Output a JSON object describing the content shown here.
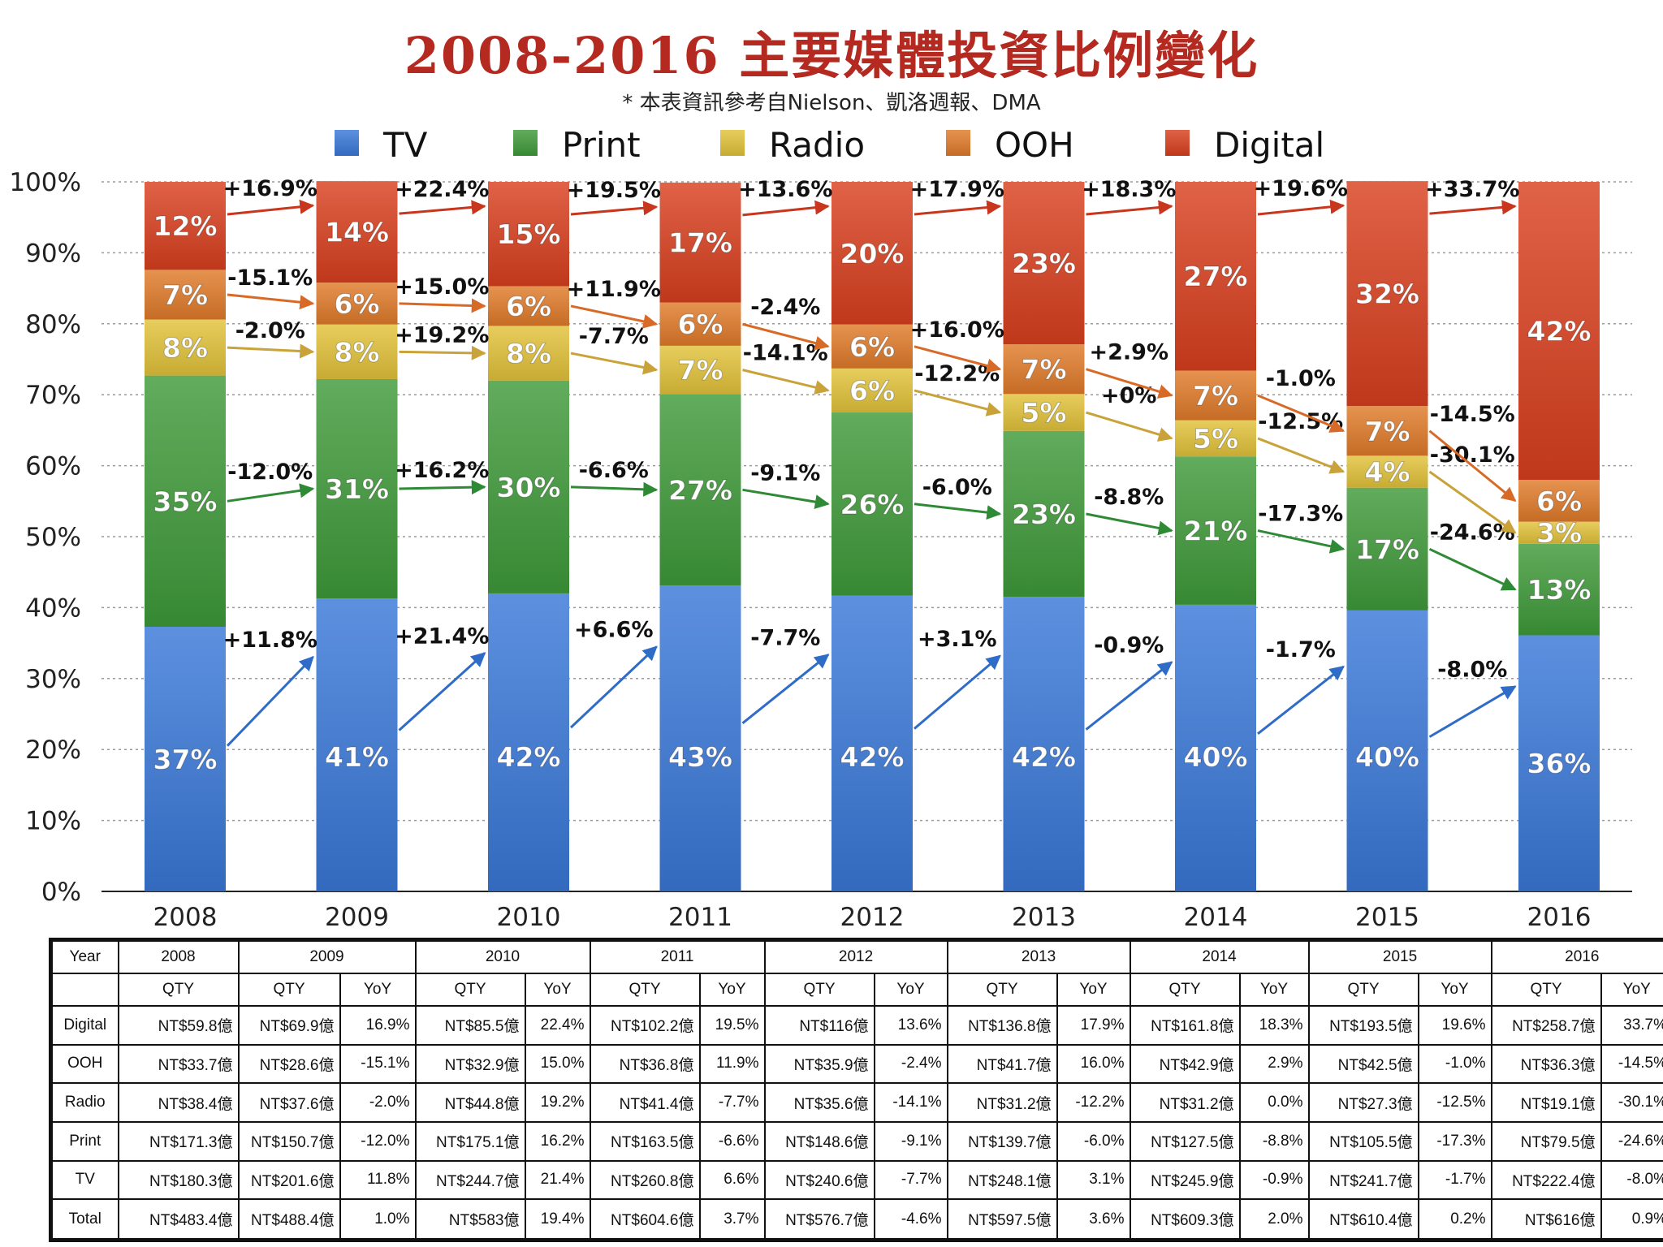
{
  "title": "2008-2016 主要媒體投資比例變化",
  "subtitle": "* 本表資訊參考自Nielson、凱洛週報、DMA",
  "chart_data": {
    "type": "bar",
    "stacked": true,
    "categories": [
      "2008",
      "2009",
      "2010",
      "2011",
      "2012",
      "2013",
      "2014",
      "2015",
      "2016"
    ],
    "ylim": [
      0,
      100
    ],
    "y_ticks": [
      "0%",
      "10%",
      "20%",
      "30%",
      "40%",
      "50%",
      "60%",
      "70%",
      "80%",
      "90%",
      "100%"
    ],
    "grid": true,
    "legend_position": "top",
    "series": [
      {
        "name": "TV",
        "color": "#3a78d8",
        "labels": [
          "37%",
          "41%",
          "42%",
          "43%",
          "42%",
          "42%",
          "40%",
          "40%",
          "36%"
        ],
        "values": [
          37.3,
          41.3,
          42.0,
          43.1,
          41.7,
          41.5,
          40.4,
          39.6,
          36.1
        ],
        "yoy": [
          "+11.8%",
          "+21.4%",
          "+6.6%",
          "-7.7%",
          "+3.1%",
          "-0.9%",
          "-1.7%",
          "-8.0%"
        ]
      },
      {
        "name": "Print",
        "color": "#3f9a3a",
        "labels": [
          "35%",
          "31%",
          "30%",
          "27%",
          "26%",
          "23%",
          "21%",
          "17%",
          "13%"
        ],
        "values": [
          35.4,
          30.9,
          30.0,
          27.0,
          25.8,
          23.4,
          20.9,
          17.3,
          12.9
        ],
        "yoy": [
          "-12.0%",
          "+16.2%",
          "-6.6%",
          "-9.1%",
          "-6.0%",
          "-8.8%",
          "-17.3%",
          "-24.6%"
        ]
      },
      {
        "name": "Radio",
        "color": "#e2c23a",
        "labels": [
          "8%",
          "8%",
          "8%",
          "7%",
          "6%",
          "5%",
          "5%",
          "4%",
          "3%"
        ],
        "values": [
          7.9,
          7.7,
          7.7,
          6.8,
          6.2,
          5.2,
          5.1,
          4.5,
          3.1
        ],
        "yoy": [
          "-2.0%",
          "+19.2%",
          "-7.7%",
          "-14.1%",
          "-12.2%",
          "+0%",
          "-12.5%",
          "-30.1%"
        ]
      },
      {
        "name": "OOH",
        "color": "#e07b2a",
        "labels": [
          "7%",
          "6%",
          "6%",
          "6%",
          "6%",
          "7%",
          "7%",
          "7%",
          "6%"
        ],
        "values": [
          7.0,
          5.9,
          5.6,
          6.1,
          6.2,
          7.0,
          7.0,
          7.0,
          5.9
        ],
        "yoy": [
          "-15.1%",
          "+15.0%",
          "+11.9%",
          "-2.4%",
          "+16.0%",
          "+2.9%",
          "-1.0%",
          "-14.5%"
        ]
      },
      {
        "name": "Digital",
        "color": "#d9401f",
        "labels": [
          "12%",
          "14%",
          "15%",
          "17%",
          "20%",
          "23%",
          "27%",
          "32%",
          "42%"
        ],
        "values": [
          12.4,
          14.3,
          14.7,
          16.9,
          20.1,
          22.9,
          26.6,
          31.7,
          42.0
        ],
        "yoy": [
          "+16.9%",
          "+22.4%",
          "+19.5%",
          "+13.6%",
          "+17.9%",
          "+18.3%",
          "+19.6%",
          "+33.7%"
        ]
      }
    ]
  },
  "table": {
    "year_label": "Year",
    "years": [
      "2008",
      "2009",
      "2010",
      "2011",
      "2012",
      "2013",
      "2014",
      "2015",
      "2016"
    ],
    "qty_label": "QTY",
    "yoy_label": "YoY",
    "rows": [
      {
        "label": "Digital",
        "qty": [
          "NT$59.8億",
          "NT$69.9億",
          "NT$85.5億",
          "NT$102.2億",
          "NT$116億",
          "NT$136.8億",
          "NT$161.8億",
          "NT$193.5億",
          "NT$258.7億"
        ],
        "yoy": [
          "16.9%",
          "22.4%",
          "19.5%",
          "13.6%",
          "17.9%",
          "18.3%",
          "19.6%",
          "33.7%"
        ]
      },
      {
        "label": "OOH",
        "qty": [
          "NT$33.7億",
          "NT$28.6億",
          "NT$32.9億",
          "NT$36.8億",
          "NT$35.9億",
          "NT$41.7億",
          "NT$42.9億",
          "NT$42.5億",
          "NT$36.3億"
        ],
        "yoy": [
          "-15.1%",
          "15.0%",
          "11.9%",
          "-2.4%",
          "16.0%",
          "2.9%",
          "-1.0%",
          "-14.5%"
        ]
      },
      {
        "label": "Radio",
        "qty": [
          "NT$38.4億",
          "NT$37.6億",
          "NT$44.8億",
          "NT$41.4億",
          "NT$35.6億",
          "NT$31.2億",
          "NT$31.2億",
          "NT$27.3億",
          "NT$19.1億"
        ],
        "yoy": [
          "-2.0%",
          "19.2%",
          "-7.7%",
          "-14.1%",
          "-12.2%",
          "0.0%",
          "-12.5%",
          "-30.1%"
        ]
      },
      {
        "label": "Print",
        "qty": [
          "NT$171.3億",
          "NT$150.7億",
          "NT$175.1億",
          "NT$163.5億",
          "NT$148.6億",
          "NT$139.7億",
          "NT$127.5億",
          "NT$105.5億",
          "NT$79.5億"
        ],
        "yoy": [
          "-12.0%",
          "16.2%",
          "-6.6%",
          "-9.1%",
          "-6.0%",
          "-8.8%",
          "-17.3%",
          "-24.6%"
        ]
      },
      {
        "label": "TV",
        "qty": [
          "NT$180.3億",
          "NT$201.6億",
          "NT$244.7億",
          "NT$260.8億",
          "NT$240.6億",
          "NT$248.1億",
          "NT$245.9億",
          "NT$241.7億",
          "NT$222.4億"
        ],
        "yoy": [
          "11.8%",
          "21.4%",
          "6.6%",
          "-7.7%",
          "3.1%",
          "-0.9%",
          "-1.7%",
          "-8.0%"
        ]
      },
      {
        "label": "Total",
        "qty": [
          "NT$483.4億",
          "NT$488.4億",
          "NT$583億",
          "NT$604.6億",
          "NT$576.7億",
          "NT$597.5億",
          "NT$609.3億",
          "NT$610.4億",
          "NT$616億"
        ],
        "yoy": [
          "1.0%",
          "19.4%",
          "3.7%",
          "-4.6%",
          "3.6%",
          "2.0%",
          "0.2%",
          "0.9%"
        ]
      }
    ]
  }
}
